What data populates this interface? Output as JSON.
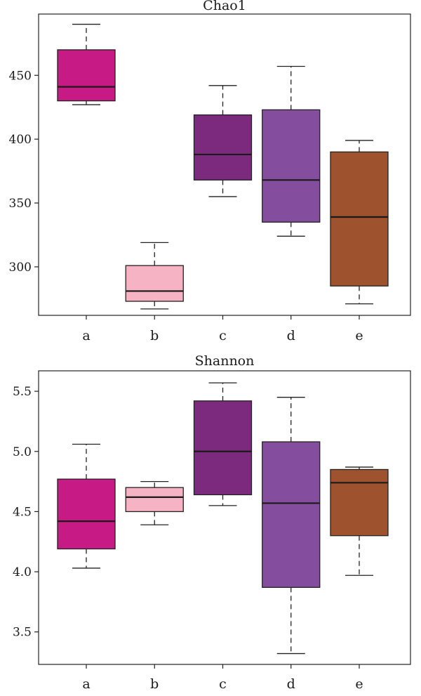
{
  "chart_data": [
    {
      "type": "box",
      "title": "Chao1",
      "categories": [
        "a",
        "b",
        "c",
        "d",
        "e"
      ],
      "ylim": [
        262,
        498
      ],
      "yticks": [
        300,
        350,
        400,
        450
      ],
      "grid": false,
      "boxes": [
        {
          "category": "a",
          "whisker_low": 427,
          "q1": 430,
          "median": 441,
          "q3": 470,
          "whisker_high": 490,
          "color": "#c71a85"
        },
        {
          "category": "b",
          "whisker_low": 267,
          "q1": 273,
          "median": 281,
          "q3": 301,
          "whisker_high": 319,
          "color": "#f6b3c3"
        },
        {
          "category": "c",
          "whisker_low": 355,
          "q1": 368,
          "median": 388,
          "q3": 419,
          "whisker_high": 442,
          "color": "#7c2a7d"
        },
        {
          "category": "d",
          "whisker_low": 324,
          "q1": 335,
          "median": 368,
          "q3": 423,
          "whisker_high": 457,
          "color": "#844d9e"
        },
        {
          "category": "e",
          "whisker_low": 271,
          "q1": 285,
          "median": 339,
          "q3": 390,
          "whisker_high": 399,
          "color": "#9e522d"
        }
      ]
    },
    {
      "type": "box",
      "title": "Shannon",
      "categories": [
        "a",
        "b",
        "c",
        "d",
        "e"
      ],
      "ylim": [
        3.23,
        5.67
      ],
      "yticks": [
        3.5,
        4.0,
        4.5,
        5.0,
        5.5
      ],
      "ytick_labels": [
        "3.5",
        "4.0",
        "4.5",
        "5.0",
        "5.5"
      ],
      "grid": false,
      "boxes": [
        {
          "category": "a",
          "whisker_low": 4.03,
          "q1": 4.19,
          "median": 4.42,
          "q3": 4.77,
          "whisker_high": 5.06,
          "color": "#c71a85"
        },
        {
          "category": "b",
          "whisker_low": 4.39,
          "q1": 4.5,
          "median": 4.62,
          "q3": 4.7,
          "whisker_high": 4.75,
          "color": "#f6b3c3"
        },
        {
          "category": "c",
          "whisker_low": 4.55,
          "q1": 4.64,
          "median": 5.0,
          "q3": 5.42,
          "whisker_high": 5.57,
          "color": "#7c2a7d"
        },
        {
          "category": "d",
          "whisker_low": 3.32,
          "q1": 3.87,
          "median": 4.57,
          "q3": 5.08,
          "whisker_high": 5.45,
          "color": "#844d9e"
        },
        {
          "category": "e",
          "whisker_low": 3.97,
          "q1": 4.3,
          "median": 4.74,
          "q3": 4.85,
          "whisker_high": 4.87,
          "color": "#9e522d"
        }
      ]
    }
  ]
}
